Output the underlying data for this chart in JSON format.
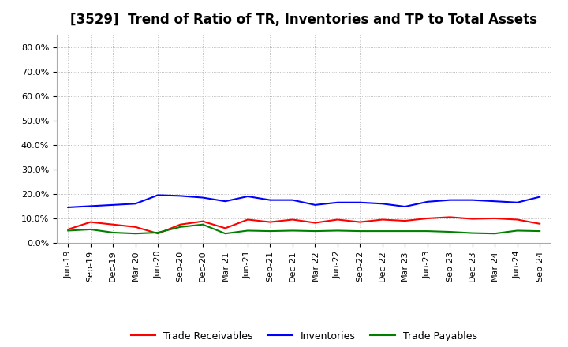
{
  "title": "[3529]  Trend of Ratio of TR, Inventories and TP to Total Assets",
  "x_labels": [
    "Jun-19",
    "Sep-19",
    "Dec-19",
    "Mar-20",
    "Jun-20",
    "Sep-20",
    "Dec-20",
    "Mar-21",
    "Jun-21",
    "Sep-21",
    "Dec-21",
    "Mar-22",
    "Jun-22",
    "Sep-22",
    "Dec-22",
    "Mar-23",
    "Jun-23",
    "Sep-23",
    "Dec-23",
    "Mar-24",
    "Jun-24",
    "Sep-24"
  ],
  "trade_receivables": [
    0.055,
    0.085,
    0.075,
    0.065,
    0.038,
    0.075,
    0.088,
    0.06,
    0.095,
    0.085,
    0.095,
    0.082,
    0.095,
    0.085,
    0.095,
    0.09,
    0.1,
    0.105,
    0.098,
    0.1,
    0.095,
    0.078
  ],
  "inventories": [
    0.145,
    0.15,
    0.155,
    0.16,
    0.195,
    0.192,
    0.185,
    0.17,
    0.19,
    0.175,
    0.175,
    0.155,
    0.165,
    0.165,
    0.16,
    0.148,
    0.168,
    0.175,
    0.175,
    0.17,
    0.165,
    0.188
  ],
  "trade_payables": [
    0.05,
    0.055,
    0.042,
    0.038,
    0.042,
    0.065,
    0.075,
    0.038,
    0.05,
    0.048,
    0.05,
    0.048,
    0.05,
    0.048,
    0.048,
    0.048,
    0.048,
    0.045,
    0.04,
    0.038,
    0.05,
    0.048
  ],
  "tr_color": "#FF0000",
  "inv_color": "#0000FF",
  "tp_color": "#008000",
  "ylim": [
    0.0,
    0.85
  ],
  "yticks": [
    0.0,
    0.1,
    0.2,
    0.3,
    0.4,
    0.5,
    0.6,
    0.7,
    0.8
  ],
  "legend_labels": [
    "Trade Receivables",
    "Inventories",
    "Trade Payables"
  ],
  "background_color": "#FFFFFF",
  "grid_color": "#AAAAAA",
  "line_width": 1.5,
  "title_fontsize": 12,
  "tick_fontsize": 8,
  "legend_fontsize": 9
}
